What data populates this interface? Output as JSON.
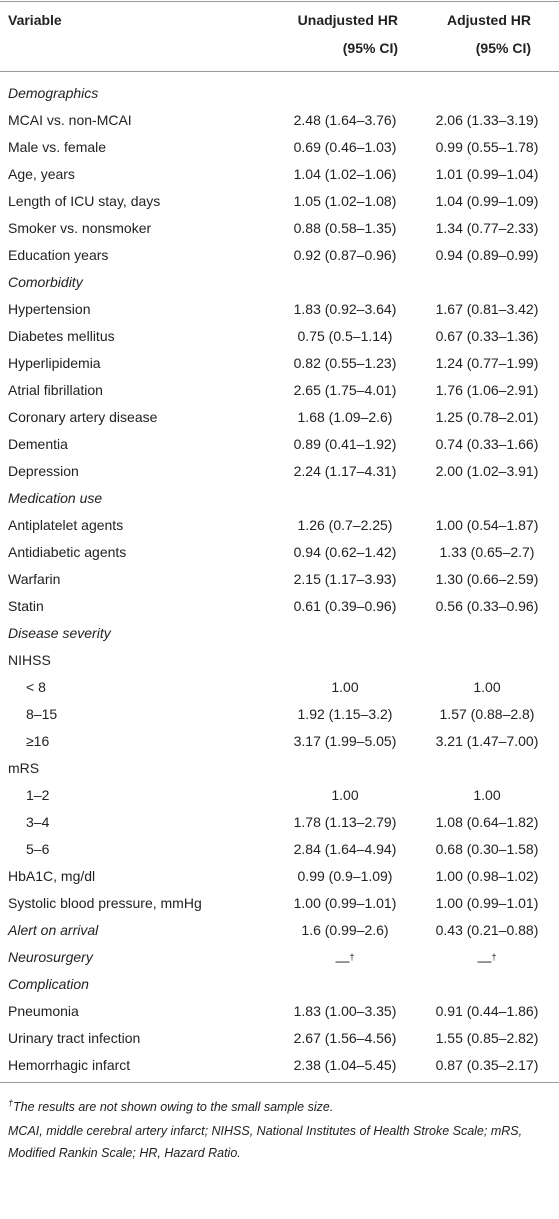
{
  "table": {
    "header": {
      "variable": "Variable",
      "unadjusted": [
        "Unadjusted HR",
        "(95% CI)"
      ],
      "adjusted": [
        "Adjusted HR",
        "(95% CI)"
      ]
    },
    "rows": [
      {
        "label": "Demographics",
        "italic": true
      },
      {
        "label": "MCAI vs. non-MCAI",
        "unadjusted": "2.48 (1.64–3.76)",
        "adjusted": "2.06 (1.33–3.19)"
      },
      {
        "label": "Male vs. female",
        "unadjusted": "0.69 (0.46–1.03)",
        "adjusted": "0.99 (0.55–1.78)"
      },
      {
        "label": "Age, years",
        "unadjusted": "1.04 (1.02–1.06)",
        "adjusted": "1.01 (0.99–1.04)"
      },
      {
        "label": "Length of ICU stay, days",
        "unadjusted": "1.05 (1.02–1.08)",
        "adjusted": "1.04 (0.99–1.09)"
      },
      {
        "label": "Smoker vs. nonsmoker",
        "unadjusted": "0.88 (0.58–1.35)",
        "adjusted": "1.34 (0.77–2.33)"
      },
      {
        "label": "Education years",
        "unadjusted": "0.92 (0.87–0.96)",
        "adjusted": "0.94 (0.89–0.99)"
      },
      {
        "label": "Comorbidity",
        "italic": true
      },
      {
        "label": "Hypertension",
        "unadjusted": "1.83 (0.92–3.64)",
        "adjusted": "1.67 (0.81–3.42)"
      },
      {
        "label": "Diabetes mellitus",
        "unadjusted": "0.75 (0.5–1.14)",
        "adjusted": "0.67 (0.33–1.36)"
      },
      {
        "label": "Hyperlipidemia",
        "unadjusted": "0.82 (0.55–1.23)",
        "adjusted": "1.24 (0.77–1.99)"
      },
      {
        "label": "Atrial fibrillation",
        "unadjusted": "2.65 (1.75–4.01)",
        "adjusted": "1.76 (1.06–2.91)"
      },
      {
        "label": "Coronary artery disease",
        "unadjusted": "1.68 (1.09–2.6)",
        "adjusted": "1.25 (0.78–2.01)"
      },
      {
        "label": "Dementia",
        "unadjusted": "0.89 (0.41–1.92)",
        "adjusted": "0.74 (0.33–1.66)"
      },
      {
        "label": "Depression",
        "unadjusted": "2.24 (1.17–4.31)",
        "adjusted": "2.00 (1.02–3.91)"
      },
      {
        "label": "Medication use",
        "italic": true
      },
      {
        "label": "Antiplatelet agents",
        "unadjusted": "1.26 (0.7–2.25)",
        "adjusted": "1.00 (0.54–1.87)"
      },
      {
        "label": "Antidiabetic agents",
        "unadjusted": "0.94 (0.62–1.42)",
        "adjusted": "1.33 (0.65–2.7)"
      },
      {
        "label": "Warfarin",
        "unadjusted": "2.15 (1.17–3.93)",
        "adjusted": "1.30 (0.66–2.59)"
      },
      {
        "label": "Statin",
        "unadjusted": "0.61 (0.39–0.96)",
        "adjusted": "0.56 (0.33–0.96)"
      },
      {
        "label": "Disease severity",
        "italic": true
      },
      {
        "label": "NIHSS"
      },
      {
        "label": "< 8",
        "indent": true,
        "unadjusted": "1.00",
        "adjusted": "1.00"
      },
      {
        "label": "8–15",
        "indent": true,
        "unadjusted": "1.92 (1.15–3.2)",
        "adjusted": "1.57 (0.88–2.8)"
      },
      {
        "label": "≥16",
        "indent": true,
        "unadjusted": "3.17 (1.99–5.05)",
        "adjusted": "3.21 (1.47–7.00)"
      },
      {
        "label": "mRS"
      },
      {
        "label": "1–2",
        "indent": true,
        "unadjusted": "1.00",
        "adjusted": "1.00"
      },
      {
        "label": "3–4",
        "indent": true,
        "unadjusted": "1.78 (1.13–2.79)",
        "adjusted": "1.08 (0.64–1.82)"
      },
      {
        "label": "5–6",
        "indent": true,
        "unadjusted": "2.84 (1.64–4.94)",
        "adjusted": "0.68 (0.30–1.58)"
      },
      {
        "label": "HbA1C, mg/dl",
        "unadjusted": "0.99 (0.9–1.09)",
        "adjusted": "1.00 (0.98–1.02)"
      },
      {
        "label": "Systolic blood pressure, mmHg",
        "unadjusted": "1.00 (0.99–1.01)",
        "adjusted": "1.00 (0.99–1.01)"
      },
      {
        "label": "Alert on arrival",
        "italic": true,
        "unadjusted": "1.6 (0.99–2.6)",
        "adjusted": "0.43 (0.21–0.88)"
      },
      {
        "label": "Neurosurgery",
        "italic": true,
        "unadjusted": "—",
        "unadjusted_note": "†",
        "adjusted": "—",
        "adjusted_note": "†"
      },
      {
        "label": "Complication",
        "italic": true
      },
      {
        "label": "Pneumonia",
        "unadjusted": "1.83 (1.00–3.35)",
        "adjusted": "0.91 (0.44–1.86)"
      },
      {
        "label": "Urinary tract infection",
        "unadjusted": "2.67 (1.56–4.56)",
        "adjusted": "1.55 (0.85–2.82)"
      },
      {
        "label": "Hemorrhagic infarct",
        "unadjusted": "2.38 (1.04–5.45)",
        "adjusted": "0.87 (0.35–2.17)"
      }
    ],
    "footnotes": [
      {
        "mark": "†",
        "text": "The results are not shown owing to the small sample size."
      },
      {
        "text": "MCAI, middle cerebral artery infarct; NIHSS, National Institutes of Health Stroke Scale; mRS, Modified Rankin Scale; HR, Hazard Ratio."
      }
    ]
  }
}
